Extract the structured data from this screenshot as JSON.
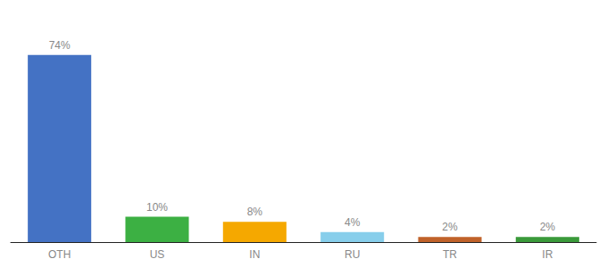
{
  "chart_data": {
    "type": "bar",
    "categories": [
      "OTH",
      "US",
      "IN",
      "RU",
      "TR",
      "IR"
    ],
    "values": [
      74,
      10,
      8,
      4,
      2,
      2
    ],
    "value_labels": [
      "74%",
      "10%",
      "8%",
      "4%",
      "2%",
      "2%"
    ],
    "data_labels": true,
    "colors": [
      "#4472c4",
      "#3cb043",
      "#f5a800",
      "#87ceeb",
      "#c0622a",
      "#3a9a3a"
    ],
    "ylim": [
      0,
      88
    ],
    "grid": false,
    "tick_labels": "x"
  }
}
